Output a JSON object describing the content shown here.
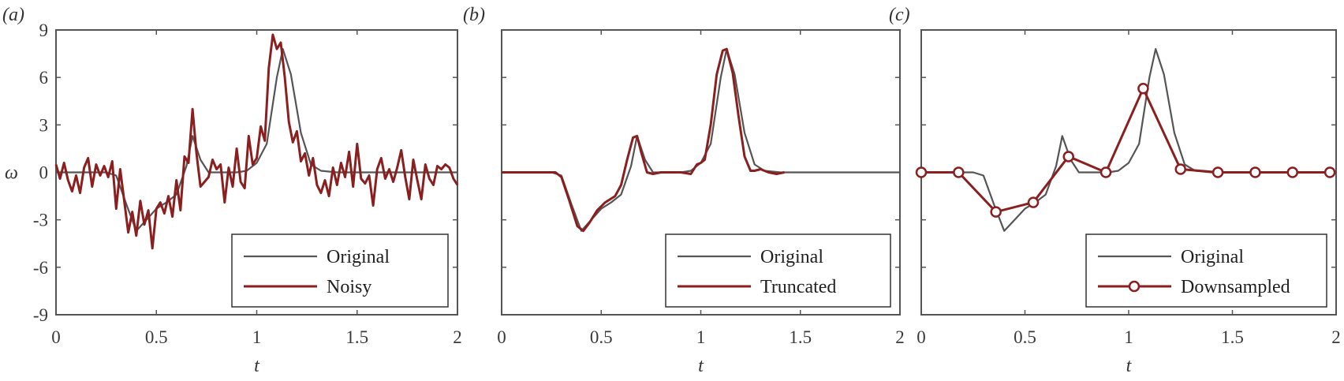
{
  "colors": {
    "original": "#555555",
    "modified": "#8b1f1f",
    "axis": "#555555"
  },
  "chart_data": [
    {
      "type": "line",
      "panel_label": "(a)",
      "xlabel": "t",
      "ylabel": "ω",
      "xlim": [
        0,
        2
      ],
      "ylim": [
        -9,
        9
      ],
      "xticks": [
        "0",
        "0.5",
        "1",
        "1.5",
        "2"
      ],
      "yticks": [
        "9",
        "6",
        "3",
        "0",
        "-3",
        "-6",
        "-9"
      ],
      "legend": {
        "position": "lower right",
        "entries": [
          "Original",
          "Noisy"
        ]
      },
      "series": [
        {
          "name": "Original",
          "x": [
            0,
            0.25,
            0.3,
            0.35,
            0.4,
            0.45,
            0.5,
            0.55,
            0.6,
            0.65,
            0.68,
            0.72,
            0.76,
            0.8,
            0.9,
            0.95,
            1.0,
            1.05,
            1.1,
            1.13,
            1.17,
            1.22,
            1.27,
            1.32,
            1.4,
            1.5,
            2.0
          ],
          "y": [
            0,
            0,
            -0.2,
            -2,
            -3.7,
            -3.0,
            -2.3,
            -1.9,
            -1.4,
            0.4,
            2.3,
            0.8,
            0,
            0,
            0,
            0.1,
            0.6,
            1.8,
            6.0,
            7.8,
            6.2,
            2.5,
            0.5,
            0.1,
            0,
            0,
            0
          ]
        },
        {
          "name": "Noisy",
          "x": [
            0,
            0.02,
            0.04,
            0.06,
            0.08,
            0.1,
            0.12,
            0.14,
            0.16,
            0.18,
            0.2,
            0.22,
            0.24,
            0.26,
            0.28,
            0.3,
            0.32,
            0.34,
            0.36,
            0.38,
            0.4,
            0.42,
            0.44,
            0.46,
            0.48,
            0.5,
            0.52,
            0.54,
            0.56,
            0.58,
            0.6,
            0.62,
            0.64,
            0.66,
            0.68,
            0.7,
            0.72,
            0.74,
            0.76,
            0.78,
            0.8,
            0.82,
            0.84,
            0.86,
            0.88,
            0.9,
            0.92,
            0.94,
            0.96,
            0.98,
            1.0,
            1.02,
            1.04,
            1.06,
            1.08,
            1.1,
            1.12,
            1.14,
            1.16,
            1.18,
            1.2,
            1.22,
            1.24,
            1.26,
            1.28,
            1.3,
            1.32,
            1.34,
            1.36,
            1.38,
            1.4,
            1.42,
            1.44,
            1.46,
            1.48,
            1.5,
            1.52,
            1.54,
            1.56,
            1.58,
            1.6,
            1.62,
            1.64,
            1.66,
            1.68,
            1.7,
            1.72,
            1.74,
            1.76,
            1.78,
            1.8,
            1.82,
            1.84,
            1.86,
            1.88,
            1.9,
            1.92,
            1.94,
            1.96,
            1.98,
            2.0
          ],
          "y": [
            0.5,
            -0.4,
            0.6,
            -0.5,
            -1.2,
            -0.2,
            -1.3,
            0.3,
            0.9,
            -0.9,
            0.5,
            -0.2,
            0.4,
            -0.3,
            0.7,
            -2.3,
            0.2,
            -1.8,
            -3.8,
            -2.5,
            -4.0,
            -1.8,
            -3.3,
            -2.4,
            -4.8,
            -2.3,
            -1.9,
            -2.6,
            -1.5,
            -2.8,
            -0.5,
            -2.4,
            1.0,
            0.6,
            4.0,
            1.2,
            -0.9,
            -0.6,
            -0.3,
            0.8,
            0.2,
            0.5,
            -1.9,
            0.3,
            -0.9,
            1.5,
            -0.6,
            -1.0,
            2.3,
            0.5,
            0.9,
            2.9,
            2.0,
            6.6,
            8.7,
            7.8,
            8.2,
            6.0,
            3.2,
            1.9,
            2.6,
            0.7,
            1.2,
            -0.2,
            0.9,
            -0.8,
            -1.3,
            -0.5,
            -1.5,
            0.3,
            -0.8,
            0.6,
            -0.3,
            1.3,
            -0.9,
            1.8,
            -0.4,
            -0.7,
            -0.2,
            -2.1,
            0.2,
            0.9,
            -0.4,
            0.2,
            -0.6,
            0.3,
            1.4,
            -0.3,
            -1.7,
            0.8,
            -0.5,
            -1.7,
            0.5,
            -0.4,
            -0.8,
            0.4,
            0.2,
            0.5,
            0.3,
            -0.4,
            -0.8
          ]
        }
      ]
    },
    {
      "type": "line",
      "panel_label": "(b)",
      "xlabel": "t",
      "xlim": [
        0,
        2
      ],
      "ylim": [
        -9,
        9
      ],
      "xticks": [
        "0",
        "0.5",
        "1",
        "1.5",
        "2"
      ],
      "legend": {
        "position": "lower right",
        "entries": [
          "Original",
          "Truncated"
        ]
      },
      "series": [
        {
          "name": "Original",
          "x": [
            0,
            0.25,
            0.3,
            0.35,
            0.4,
            0.45,
            0.5,
            0.55,
            0.6,
            0.65,
            0.68,
            0.72,
            0.76,
            0.8,
            0.9,
            0.95,
            1.0,
            1.05,
            1.1,
            1.13,
            1.17,
            1.22,
            1.27,
            1.32,
            1.4,
            1.5,
            2.0
          ],
          "y": [
            0,
            0,
            -0.2,
            -2,
            -3.7,
            -3.0,
            -2.3,
            -1.9,
            -1.4,
            0.4,
            2.3,
            0.8,
            0,
            0,
            0,
            0.1,
            0.6,
            1.8,
            6.0,
            7.8,
            6.2,
            2.5,
            0.5,
            0.1,
            0,
            0,
            0
          ]
        },
        {
          "name": "Truncated",
          "x": [
            0,
            0.27,
            0.3,
            0.34,
            0.38,
            0.41,
            0.44,
            0.48,
            0.52,
            0.57,
            0.6,
            0.63,
            0.66,
            0.68,
            0.7,
            0.73,
            0.76,
            0.8,
            0.9,
            0.95,
            0.98,
            1.0,
            1.02,
            1.05,
            1.08,
            1.11,
            1.13,
            1.16,
            1.19,
            1.22,
            1.25,
            1.27,
            1.3,
            1.34,
            1.38,
            1.42
          ],
          "y": [
            0,
            0,
            -0.3,
            -1.8,
            -3.4,
            -3.7,
            -3.2,
            -2.4,
            -1.9,
            -1.5,
            -0.8,
            0.8,
            2.2,
            2.3,
            1.3,
            0,
            -0.1,
            0,
            0,
            -0.1,
            0.5,
            0.6,
            0.8,
            3.0,
            6.2,
            7.7,
            7.8,
            6.3,
            3.5,
            1.0,
            0.1,
            0.1,
            0.2,
            0,
            -0.1,
            0
          ]
        }
      ]
    },
    {
      "type": "line",
      "panel_label": "(c)",
      "xlabel": "t",
      "xlim": [
        0,
        2
      ],
      "ylim": [
        -9,
        9
      ],
      "xticks": [
        "0",
        "0.5",
        "1",
        "1.5",
        "2"
      ],
      "legend": {
        "position": "lower right",
        "entries": [
          "Original",
          "Downsampled"
        ]
      },
      "series": [
        {
          "name": "Original",
          "x": [
            0,
            0.25,
            0.3,
            0.35,
            0.4,
            0.45,
            0.5,
            0.55,
            0.6,
            0.65,
            0.68,
            0.72,
            0.76,
            0.8,
            0.9,
            0.95,
            1.0,
            1.05,
            1.1,
            1.13,
            1.17,
            1.22,
            1.27,
            1.32,
            1.4,
            1.5,
            2.0
          ],
          "y": [
            0,
            0,
            -0.2,
            -2,
            -3.7,
            -3.0,
            -2.3,
            -1.9,
            -1.4,
            0.4,
            2.3,
            0.8,
            0,
            0,
            0,
            0.1,
            0.6,
            1.8,
            6.0,
            7.8,
            6.2,
            2.5,
            0.5,
            0.1,
            0,
            0,
            0
          ]
        },
        {
          "name": "Downsampled",
          "marker": "circle",
          "x": [
            0,
            0.18,
            0.36,
            0.54,
            0.71,
            0.89,
            1.07,
            1.25,
            1.43,
            1.61,
            1.79,
            1.97
          ],
          "y": [
            0,
            0,
            -2.5,
            -1.9,
            1.0,
            0,
            5.3,
            0.2,
            0,
            0,
            0,
            0
          ]
        }
      ]
    }
  ]
}
